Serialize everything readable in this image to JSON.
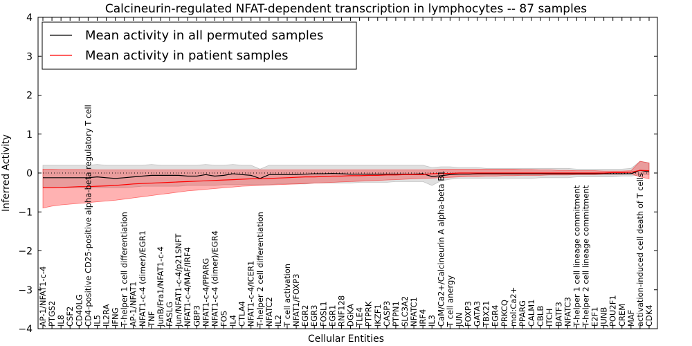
{
  "chart_data": {
    "type": "line",
    "title": "Calcineurin-regulated NFAT-dependent transcription in lymphocytes -- 87 samples",
    "xlabel": "Cellular Entities",
    "ylabel": "Inferred Activity",
    "ylim": [
      -4,
      4
    ],
    "yticks": [
      -4,
      -3,
      -2,
      -1,
      0,
      1,
      2,
      3,
      4
    ],
    "ytick_labels": [
      "−4",
      "−3",
      "−2",
      "−1",
      "0",
      "1",
      "2",
      "3",
      "4"
    ],
    "grid": false,
    "legend": {
      "placement": "top-left",
      "entries": [
        {
          "label": "Mean activity in all permuted samples",
          "color": "#000000"
        },
        {
          "label": "Mean activity in patient samples",
          "color": "#ff0000"
        }
      ]
    },
    "categories": [
      "AP-1/NFAT1-c-4",
      "PTGS2",
      "IL8",
      "CSF2",
      "CD40LG",
      "CD4-positive CD25-positive alpha-beta regulatory T cell",
      "IL5",
      "IL2RA",
      "IFNG",
      "T-helper 1 cell differentiation",
      "AP-1/NFAT1",
      "NFAT1-c-4 (dimer)/EGR1",
      "TNF",
      "JunB/Fra1/NFAT1-c-4",
      "FASLG",
      "Jun/NFAT1-c-4/p21SNFT",
      "NFAT1-c-4/MAF/IRF4",
      "GBP3",
      "NFAT1-c-4/PPARG",
      "NFAT1-c-4 (dimer)/EGR4",
      "FOS",
      "IL4",
      "CTLA4",
      "NFAT1-c-4/ICER1",
      "T-helper 2 cell differentiation",
      "NFATC2",
      "IL2",
      "T cell activation",
      "NFAT1/FOXP3",
      "EGR2",
      "EGR3",
      "FOSL1",
      "EGR1",
      "RNF128",
      "DGKA",
      "TLE4",
      "PTPRK",
      "IKZF1",
      "CASP3",
      "PTPN1",
      "SLC3A2",
      "NFATC1",
      "IRF4",
      "IL3",
      "CaM/Ca2+/Calcineurin A alpha-beta B1",
      "T cell anergy",
      "JUN",
      "FOXP3",
      "GATA3",
      "TBX21",
      "EGR4",
      "PRKCQ",
      "mol:Ca2+",
      "PPARG",
      "CALM1",
      "CBLB",
      "ITCH",
      "BATF3",
      "NFATC3",
      "T-helper 1 cell lineage commitment",
      "T-helper 2 cell lineage commitment",
      "E2F1",
      "JUNB",
      "POU2F1",
      "CREM",
      "MAF",
      "activation-induced cell death of T cells",
      "CDK4"
    ],
    "series": [
      {
        "name": "Mean activity in all permuted samples",
        "color": "#000000",
        "values": [
          -0.12,
          -0.12,
          -0.12,
          -0.12,
          -0.12,
          -0.12,
          -0.1,
          -0.12,
          -0.14,
          -0.12,
          -0.1,
          -0.08,
          -0.06,
          -0.06,
          -0.06,
          -0.06,
          -0.08,
          -0.08,
          -0.04,
          -0.08,
          -0.06,
          -0.02,
          -0.04,
          -0.06,
          -0.14,
          -0.04,
          -0.04,
          -0.04,
          -0.04,
          -0.03,
          -0.02,
          -0.02,
          -0.01,
          -0.02,
          -0.03,
          -0.03,
          -0.03,
          -0.03,
          -0.03,
          -0.03,
          -0.03,
          -0.03,
          -0.02,
          -0.09,
          -0.07,
          -0.04,
          -0.03,
          -0.03,
          -0.02,
          -0.02,
          -0.02,
          -0.02,
          -0.02,
          -0.02,
          -0.02,
          -0.02,
          -0.02,
          -0.02,
          -0.02,
          -0.02,
          -0.02,
          -0.02,
          -0.02,
          -0.02,
          -0.02,
          -0.02,
          0.07,
          0.03
        ],
        "band": {
          "lower": [
            -0.38,
            -0.38,
            -0.38,
            -0.38,
            -0.38,
            -0.38,
            -0.38,
            -0.38,
            -0.38,
            -0.38,
            -0.36,
            -0.34,
            -0.34,
            -0.34,
            -0.34,
            -0.34,
            -0.32,
            -0.32,
            -0.32,
            -0.32,
            -0.3,
            -0.3,
            -0.3,
            -0.3,
            -0.3,
            -0.3,
            -0.28,
            -0.28,
            -0.28,
            -0.28,
            -0.26,
            -0.26,
            -0.26,
            -0.26,
            -0.26,
            -0.24,
            -0.24,
            -0.24,
            -0.24,
            -0.22,
            -0.22,
            -0.22,
            -0.22,
            -0.32,
            -0.2,
            -0.16,
            -0.14,
            -0.14,
            -0.14,
            -0.14,
            -0.14,
            -0.14,
            -0.14,
            -0.14,
            -0.14,
            -0.12,
            -0.12,
            -0.12,
            -0.12,
            -0.1,
            -0.1,
            -0.1,
            -0.1,
            -0.1,
            -0.08,
            -0.08,
            -0.04,
            -0.04
          ],
          "upper": [
            0.2,
            0.2,
            0.2,
            0.2,
            0.2,
            0.2,
            0.22,
            0.2,
            0.2,
            0.2,
            0.2,
            0.2,
            0.22,
            0.2,
            0.2,
            0.2,
            0.2,
            0.2,
            0.22,
            0.2,
            0.2,
            0.22,
            0.2,
            0.2,
            0.1,
            0.2,
            0.2,
            0.2,
            0.2,
            0.2,
            0.2,
            0.2,
            0.2,
            0.2,
            0.2,
            0.2,
            0.2,
            0.2,
            0.2,
            0.2,
            0.2,
            0.2,
            0.2,
            0.14,
            0.16,
            0.16,
            0.14,
            0.14,
            0.14,
            0.12,
            0.12,
            0.12,
            0.12,
            0.12,
            0.12,
            0.12,
            0.12,
            0.12,
            0.12,
            0.1,
            0.1,
            0.1,
            0.1,
            0.1,
            0.1,
            0.12,
            0.3,
            0.26
          ]
        }
      },
      {
        "name": "Mean activity in patient samples",
        "color": "#ff0000",
        "values": [
          -0.38,
          -0.38,
          -0.37,
          -0.36,
          -0.35,
          -0.35,
          -0.34,
          -0.33,
          -0.32,
          -0.3,
          -0.28,
          -0.27,
          -0.26,
          -0.25,
          -0.24,
          -0.23,
          -0.22,
          -0.21,
          -0.2,
          -0.19,
          -0.18,
          -0.17,
          -0.16,
          -0.15,
          -0.15,
          -0.14,
          -0.13,
          -0.12,
          -0.11,
          -0.1,
          -0.1,
          -0.09,
          -0.08,
          -0.08,
          -0.07,
          -0.07,
          -0.06,
          -0.06,
          -0.05,
          -0.05,
          -0.04,
          -0.04,
          -0.04,
          -0.02,
          -0.01,
          -0.01,
          0,
          0,
          0,
          0,
          0,
          0,
          0,
          0,
          0,
          0,
          0,
          0,
          0,
          0,
          0,
          0,
          0,
          0.01,
          0.01,
          0.02,
          0.07,
          0.06
        ],
        "band": {
          "lower": [
            -0.9,
            -0.85,
            -0.82,
            -0.8,
            -0.78,
            -0.76,
            -0.74,
            -0.72,
            -0.7,
            -0.67,
            -0.64,
            -0.61,
            -0.58,
            -0.55,
            -0.52,
            -0.49,
            -0.46,
            -0.44,
            -0.42,
            -0.4,
            -0.38,
            -0.36,
            -0.34,
            -0.33,
            -0.32,
            -0.31,
            -0.3,
            -0.29,
            -0.28,
            -0.27,
            -0.26,
            -0.25,
            -0.24,
            -0.23,
            -0.22,
            -0.21,
            -0.2,
            -0.19,
            -0.18,
            -0.17,
            -0.16,
            -0.15,
            -0.14,
            -0.13,
            -0.12,
            -0.11,
            -0.1,
            -0.09,
            -0.09,
            -0.08,
            -0.08,
            -0.07,
            -0.07,
            -0.06,
            -0.06,
            -0.06,
            -0.05,
            -0.05,
            -0.05,
            -0.04,
            -0.04,
            -0.04,
            -0.03,
            -0.03,
            -0.03,
            -0.02,
            -0.1,
            -0.15
          ],
          "upper": [
            0.1,
            0.1,
            0.09,
            0.09,
            0.09,
            0.09,
            0.08,
            0.08,
            0.08,
            0.08,
            0.08,
            0.08,
            0.08,
            0.08,
            0.08,
            0.08,
            0.08,
            0.08,
            0.08,
            0.08,
            0.08,
            0.08,
            0.08,
            0.08,
            0.08,
            0.08,
            0.08,
            0.08,
            0.08,
            0.08,
            0.08,
            0.08,
            0.08,
            0.08,
            0.08,
            0.08,
            0.08,
            0.08,
            0.08,
            0.08,
            0.08,
            0.08,
            0.08,
            0.08,
            0.1,
            0.1,
            0.1,
            0.1,
            0.1,
            0.1,
            0.1,
            0.1,
            0.1,
            0.09,
            0.09,
            0.08,
            0.08,
            0.07,
            0.07,
            0.06,
            0.06,
            0.06,
            0.05,
            0.05,
            0.05,
            0.06,
            0.3,
            0.26
          ]
        }
      }
    ],
    "reference_line": {
      "y": 0,
      "style": "dotted",
      "color": "#000000"
    }
  }
}
